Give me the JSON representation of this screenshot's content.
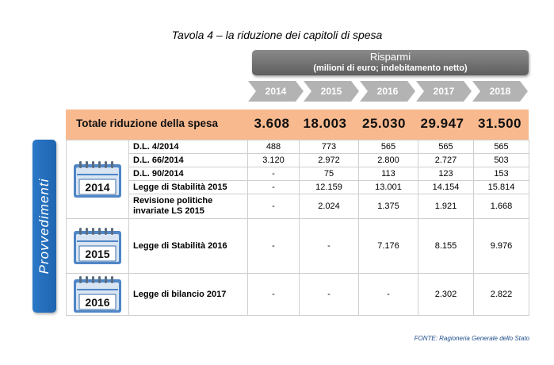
{
  "title": "Tavola 4 – la riduzione dei capitoli di spesa",
  "header": {
    "risparmi": "Risparmi",
    "unit": "(milioni di euro; indebitamento netto)",
    "years": [
      "2014",
      "2015",
      "2016",
      "2017",
      "2018"
    ]
  },
  "totale": {
    "label": "Totale riduzione della spesa",
    "values": [
      "3.608",
      "18.003",
      "25.030",
      "29.947",
      "31.500"
    ]
  },
  "sidebar_label": "Provvedimenti",
  "groups": [
    {
      "year": "2014",
      "rows": [
        {
          "label": "D.L. 4/2014",
          "values": [
            "488",
            "773",
            "565",
            "565",
            "565"
          ]
        },
        {
          "label": "D.L. 66/2014",
          "values": [
            "3.120",
            "2.972",
            "2.800",
            "2.727",
            "503"
          ]
        },
        {
          "label": "D.L. 90/2014",
          "values": [
            "-",
            "75",
            "113",
            "123",
            "153"
          ]
        },
        {
          "label": "Legge di Stabilità 2015",
          "values": [
            "-",
            "12.159",
            "13.001",
            "14.154",
            "15.814"
          ]
        },
        {
          "label": "Revisione politiche invariate LS 2015",
          "values": [
            "-",
            "2.024",
            "1.375",
            "1.921",
            "1.668"
          ]
        }
      ]
    },
    {
      "year": "2015",
      "rows": [
        {
          "label": "Legge di Stabilità 2016",
          "values": [
            "-",
            "-",
            "7.176",
            "8.155",
            "9.976"
          ]
        }
      ]
    },
    {
      "year": "2016",
      "rows": [
        {
          "label": "Legge di bilancio 2017",
          "values": [
            "-",
            "-",
            "-",
            "2.302",
            "2.822"
          ]
        }
      ]
    }
  ],
  "fonte": "FONTE: Ragioneria Generale dello Stato",
  "colors": {
    "accent_blue": "#2a78c7",
    "band_orange": "#f9b98e",
    "header_grey": "#6f6f6f",
    "year_arrow_grey": "#b3b3b3"
  },
  "icons": {
    "calendar": "calendar-icon"
  }
}
